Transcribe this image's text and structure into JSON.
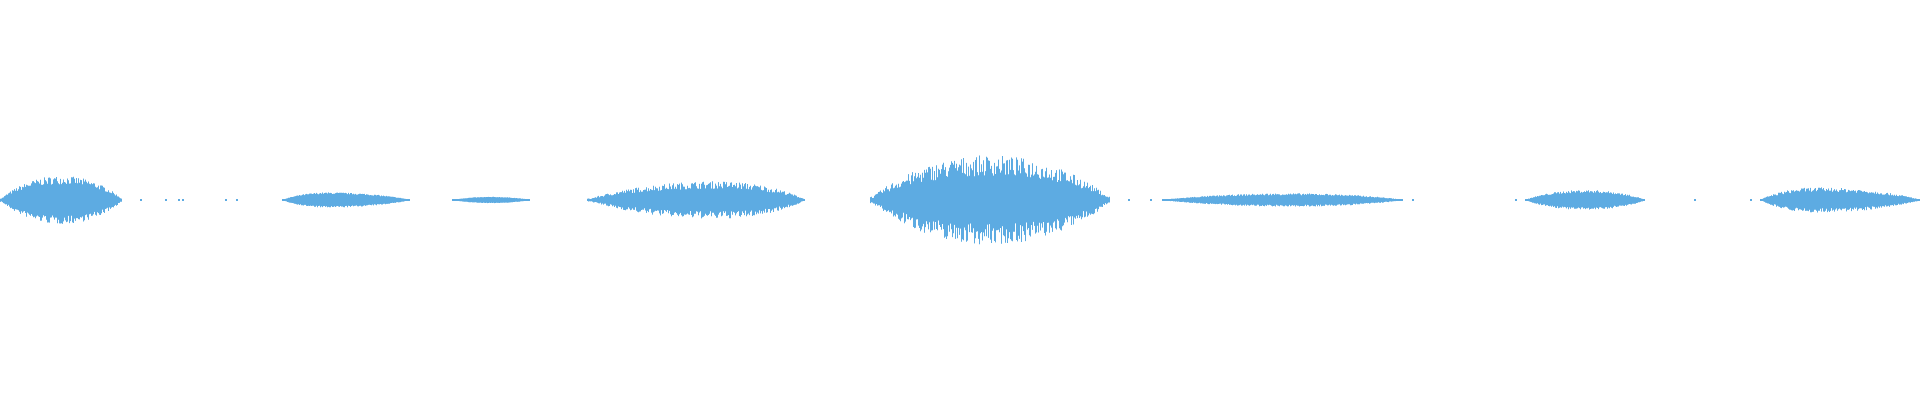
{
  "chart_data": {
    "type": "area",
    "kind": "audio-waveform",
    "title": "",
    "xlabel": "",
    "ylabel": "",
    "axes_visible": false,
    "grid": false,
    "legend": "none",
    "symmetric": true
  },
  "colors": {
    "waveform": "#5dabe2",
    "background": "#ffffff"
  }
}
